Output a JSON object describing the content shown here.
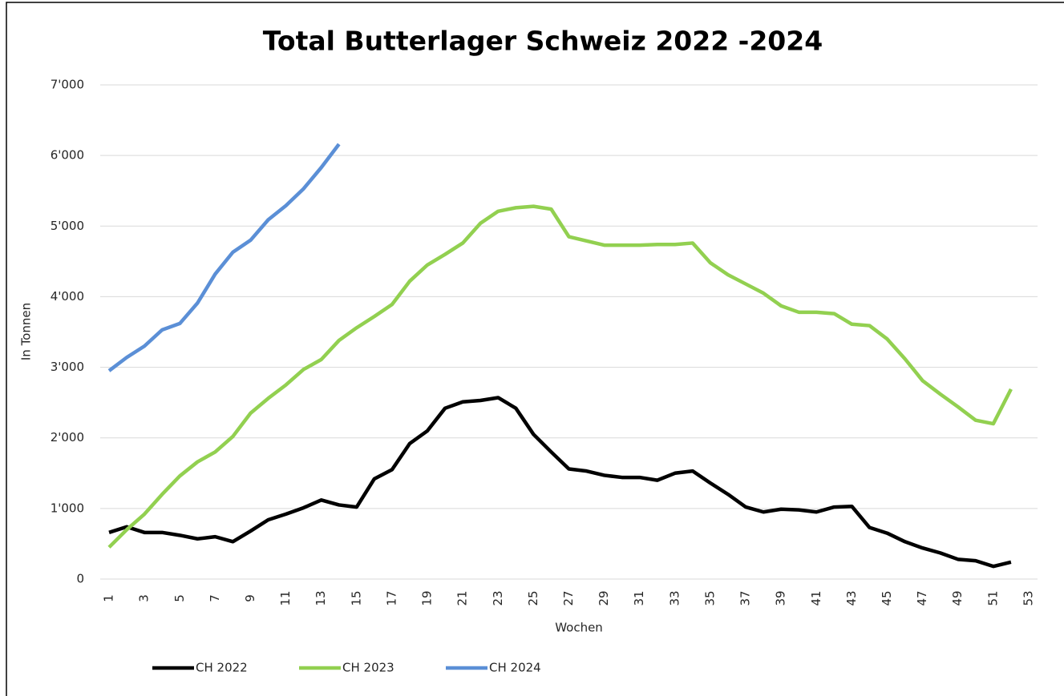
{
  "chart_data": {
    "type": "line",
    "title": "Total Butterlager Schweiz 2022 -2024",
    "x_label": "Wochen",
    "y_label": "In Tonnen",
    "categories": [
      "1",
      null,
      "3",
      null,
      "5",
      null,
      "7",
      null,
      "9",
      null,
      "11",
      null,
      "13",
      null,
      "15",
      null,
      "17",
      null,
      "19",
      null,
      "21",
      null,
      "23",
      null,
      "25",
      null,
      "27",
      null,
      "29",
      null,
      "31",
      null,
      "33",
      null,
      "35",
      null,
      "37",
      null,
      "39",
      null,
      "41",
      null,
      "43",
      null,
      "45",
      null,
      "47",
      null,
      "49",
      null,
      "51",
      null,
      "53"
    ],
    "ylim": [
      0,
      7000
    ],
    "yticks": [
      0,
      {
        "value": 1000,
        "label": "1'000"
      },
      {
        "value": 2000,
        "label": "2'000"
      },
      {
        "value": 3000,
        "label": "3'000"
      },
      {
        "value": 4000,
        "label": "4'000"
      },
      {
        "value": 5000,
        "label": "5'000"
      },
      {
        "value": 6000,
        "label": "6'000"
      },
      {
        "value": 7000,
        "label": "7'000"
      }
    ],
    "grid": true,
    "legend": "bottom-left",
    "series": [
      {
        "name": "CH 2022",
        "color": "#000000",
        "values": [
          660,
          740,
          660,
          660,
          620,
          570,
          600,
          530,
          680,
          840,
          920,
          1010,
          1120,
          1050,
          1020,
          1420,
          1550,
          1920,
          2100,
          2420,
          2510,
          2530,
          2570,
          2420,
          2050,
          1800,
          1560,
          1530,
          1470,
          1440,
          1440,
          1400,
          1500,
          1530,
          1360,
          1200,
          1020,
          950,
          990,
          980,
          950,
          1020,
          1030,
          730,
          650,
          530,
          440,
          370,
          280,
          260,
          180,
          240,
          null
        ]
      },
      {
        "name": "CH 2023",
        "color": "#92d050",
        "values": [
          450,
          700,
          920,
          1200,
          1460,
          1660,
          1800,
          2020,
          2350,
          2560,
          2750,
          2970,
          3110,
          3380,
          3560,
          3720,
          3890,
          4220,
          4450,
          4600,
          4760,
          5040,
          5210,
          5260,
          5280,
          5240,
          4850,
          4790,
          4730,
          4730,
          4730,
          4740,
          4740,
          4760,
          4480,
          4310,
          4180,
          4050,
          3870,
          3780,
          3780,
          3760,
          3610,
          3590,
          3400,
          3120,
          2810,
          2620,
          2440,
          2250,
          2200,
          2690,
          null
        ]
      },
      {
        "name": "CH 2024",
        "color": "#5b8fd6",
        "values": [
          2950,
          3140,
          3300,
          3530,
          3620,
          3910,
          4320,
          4630,
          4800,
          5090,
          5290,
          5530,
          5830,
          6160,
          null,
          null,
          null,
          null,
          null,
          null,
          null,
          null,
          null,
          null,
          null,
          null,
          null,
          null,
          null,
          null,
          null,
          null,
          null,
          null,
          null,
          null,
          null,
          null,
          null,
          null,
          null,
          null,
          null,
          null,
          null,
          null,
          null,
          null,
          null,
          null,
          null,
          null,
          null
        ]
      }
    ]
  }
}
